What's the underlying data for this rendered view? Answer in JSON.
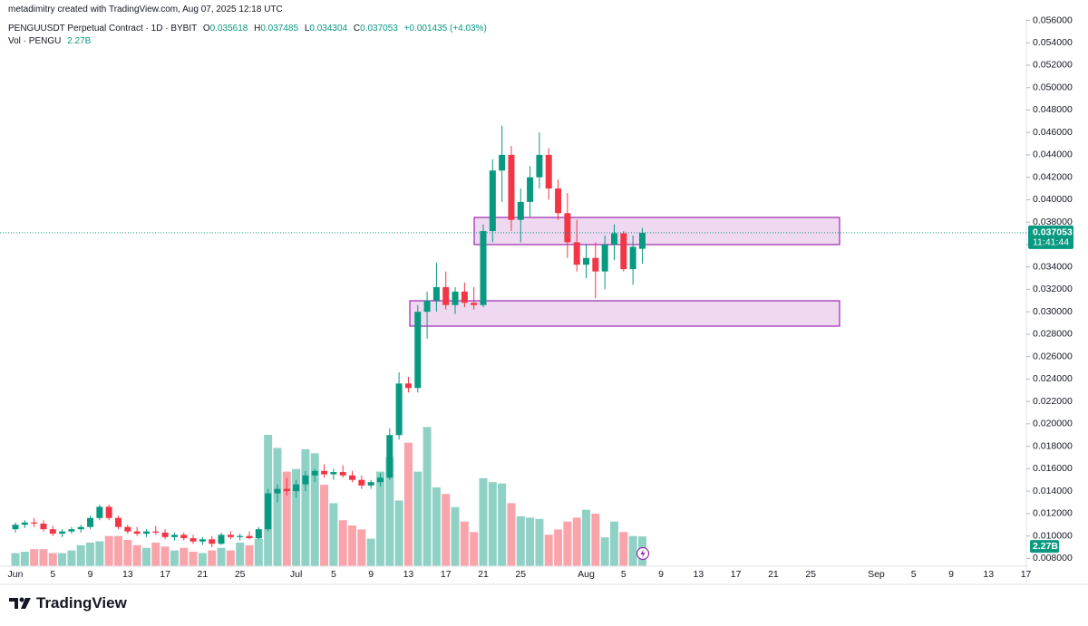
{
  "attribution": "metadimitry created with TradingView.com, Aug 07, 2025 12:18 UTC",
  "logo": "TradingView",
  "chart_data": {
    "type": "candlestick",
    "symbol": "PENGUUSDT Perpetual Contract · 1D · BYBIT",
    "ohlc_labels": [
      "O",
      "H",
      "L",
      "C"
    ],
    "change": "+0.001435",
    "change_pct": "(+4.03%)",
    "countdown": "11:41:44",
    "up_color": "#089981",
    "down_color": "#f23645",
    "x": [
      "06-01",
      "06-02",
      "06-03",
      "06-04",
      "06-05",
      "06-06",
      "06-07",
      "06-08",
      "06-09",
      "06-10",
      "06-11",
      "06-12",
      "06-13",
      "06-14",
      "06-15",
      "06-16",
      "06-17",
      "06-18",
      "06-19",
      "06-20",
      "06-21",
      "06-22",
      "06-23",
      "06-24",
      "06-25",
      "06-26",
      "06-27",
      "06-28",
      "06-29",
      "06-30",
      "07-01",
      "07-02",
      "07-03",
      "07-04",
      "07-05",
      "07-06",
      "07-07",
      "07-08",
      "07-09",
      "07-10",
      "07-11",
      "07-12",
      "07-13",
      "07-14",
      "07-15",
      "07-16",
      "07-17",
      "07-18",
      "07-19",
      "07-20",
      "07-21",
      "07-22",
      "07-23",
      "07-24",
      "07-25",
      "07-26",
      "07-27",
      "07-28",
      "07-29",
      "07-30",
      "07-31",
      "08-01",
      "08-02",
      "08-03",
      "08-04",
      "08-05",
      "08-06",
      "08-07"
    ],
    "open": [
      0.0106,
      0.011,
      0.0112,
      0.0111,
      0.0106,
      0.0102,
      0.0104,
      0.0106,
      0.0108,
      0.0116,
      0.0126,
      0.0116,
      0.0108,
      0.0104,
      0.0102,
      0.0104,
      0.0103,
      0.0099,
      0.0101,
      0.0098,
      0.0095,
      0.0097,
      0.0093,
      0.0101,
      0.0099,
      0.01,
      0.0098,
      0.0106,
      0.0138,
      0.0142,
      0.014,
      0.0146,
      0.0154,
      0.0158,
      0.0155,
      0.0157,
      0.0154,
      0.015,
      0.0145,
      0.0148,
      0.0152,
      0.019,
      0.0236,
      0.0232,
      0.03,
      0.031,
      0.0322,
      0.0306,
      0.0318,
      0.0308,
      0.0306,
      0.0372,
      0.0426,
      0.044,
      0.0382,
      0.0398,
      0.042,
      0.044,
      0.041,
      0.0388,
      0.0362,
      0.0342,
      0.0348,
      0.0336,
      0.036,
      0.037,
      0.0338,
      0.035618
    ],
    "high": [
      0.0112,
      0.0114,
      0.0116,
      0.0114,
      0.0109,
      0.0106,
      0.0108,
      0.011,
      0.0118,
      0.0128,
      0.0128,
      0.0118,
      0.011,
      0.0108,
      0.0106,
      0.0109,
      0.0106,
      0.0103,
      0.0103,
      0.0101,
      0.0099,
      0.01,
      0.0103,
      0.0104,
      0.0102,
      0.0104,
      0.0108,
      0.0142,
      0.0146,
      0.0152,
      0.015,
      0.0158,
      0.016,
      0.0164,
      0.016,
      0.0163,
      0.0158,
      0.0154,
      0.015,
      0.0156,
      0.0196,
      0.0246,
      0.0242,
      0.0306,
      0.0318,
      0.0344,
      0.0336,
      0.0322,
      0.0326,
      0.0322,
      0.0378,
      0.0436,
      0.0466,
      0.0448,
      0.041,
      0.043,
      0.046,
      0.0446,
      0.0418,
      0.0406,
      0.0382,
      0.036,
      0.0362,
      0.0368,
      0.0378,
      0.0372,
      0.0368,
      0.037485
    ],
    "low": [
      0.0103,
      0.0107,
      0.0108,
      0.0104,
      0.01,
      0.0099,
      0.0102,
      0.0103,
      0.0106,
      0.0114,
      0.0114,
      0.0106,
      0.0102,
      0.01,
      0.0099,
      0.0101,
      0.0097,
      0.0096,
      0.0096,
      0.0093,
      0.0092,
      0.009,
      0.0092,
      0.0097,
      0.0096,
      0.0097,
      0.0097,
      0.0104,
      0.013,
      0.0136,
      0.0134,
      0.014,
      0.0148,
      0.0152,
      0.015,
      0.0152,
      0.0148,
      0.0142,
      0.0142,
      0.0144,
      0.015,
      0.0186,
      0.0228,
      0.0228,
      0.0276,
      0.03,
      0.0302,
      0.0298,
      0.0304,
      0.0302,
      0.0304,
      0.0362,
      0.0398,
      0.0372,
      0.0362,
      0.0385,
      0.041,
      0.04,
      0.0382,
      0.0348,
      0.0336,
      0.033,
      0.0312,
      0.032,
      0.0346,
      0.0336,
      0.0324,
      0.034304
    ],
    "close": [
      0.011,
      0.0112,
      0.0111,
      0.0106,
      0.0102,
      0.0104,
      0.0106,
      0.0108,
      0.0116,
      0.0126,
      0.0116,
      0.0108,
      0.0104,
      0.0102,
      0.0104,
      0.0103,
      0.0099,
      0.0101,
      0.0098,
      0.0095,
      0.0097,
      0.0093,
      0.0101,
      0.0099,
      0.01,
      0.0098,
      0.0106,
      0.0138,
      0.0142,
      0.014,
      0.0146,
      0.0154,
      0.0158,
      0.0155,
      0.0157,
      0.0154,
      0.015,
      0.0145,
      0.0148,
      0.0152,
      0.019,
      0.0236,
      0.0232,
      0.03,
      0.031,
      0.0322,
      0.0306,
      0.0318,
      0.0308,
      0.0306,
      0.0372,
      0.0426,
      0.044,
      0.0382,
      0.0398,
      0.042,
      0.044,
      0.041,
      0.0388,
      0.0362,
      0.0342,
      0.0348,
      0.0336,
      0.036,
      0.037,
      0.0338,
      0.0358,
      0.037053
    ],
    "volume": {
      "name": "Vol · PENGU",
      "values": [
        1.0,
        1.1,
        1.3,
        1.3,
        1.0,
        1.0,
        1.2,
        1.6,
        1.8,
        1.9,
        2.3,
        2.3,
        2.0,
        1.6,
        1.4,
        1.8,
        1.5,
        1.2,
        1.4,
        1.1,
        1.0,
        1.2,
        1.4,
        1.2,
        1.8,
        1.6,
        2.1,
        10.0,
        9.0,
        7.2,
        7.4,
        8.9,
        8.6,
        6.2,
        4.8,
        3.5,
        3.1,
        2.8,
        2.1,
        7.2,
        8.3,
        5.0,
        9.4,
        7.2,
        10.6,
        6.0,
        5.5,
        4.5,
        3.4,
        2.6,
        6.7,
        6.4,
        6.3,
        4.8,
        3.8,
        3.7,
        3.6,
        2.4,
        2.8,
        3.4,
        3.7,
        4.3,
        4.0,
        2.2,
        3.4,
        2.6,
        2.3,
        2.27
      ],
      "value_labels": [
        null,
        null,
        null,
        null,
        null,
        null,
        null,
        null,
        null,
        null,
        null,
        null,
        null,
        null,
        null,
        null,
        null,
        null,
        null,
        null,
        null,
        null,
        null,
        null,
        null,
        null,
        null,
        null,
        null,
        null,
        null,
        null,
        null,
        null,
        null,
        null,
        null,
        null,
        null,
        null,
        null,
        null,
        null,
        null,
        null,
        null,
        null,
        null,
        null,
        null,
        null,
        null,
        null,
        null,
        null,
        null,
        null,
        null,
        null,
        null,
        null,
        null,
        null,
        null,
        null,
        null,
        null,
        "2.27B"
      ]
    },
    "ylim": [
      0.0073,
      0.0562
    ],
    "yticks": [
      {
        "value": 0.008,
        "label": "0.008000"
      },
      {
        "value": 0.01,
        "label": "0.010000"
      },
      {
        "value": 0.012,
        "label": "0.012000"
      },
      {
        "value": 0.014,
        "label": "0.014000"
      },
      {
        "value": 0.016,
        "label": "0.016000"
      },
      {
        "value": 0.018,
        "label": "0.018000"
      },
      {
        "value": 0.02,
        "label": "0.020000"
      },
      {
        "value": 0.022,
        "label": "0.022000"
      },
      {
        "value": 0.024,
        "label": "0.024000"
      },
      {
        "value": 0.026,
        "label": "0.026000"
      },
      {
        "value": 0.028,
        "label": "0.028000"
      },
      {
        "value": 0.03,
        "label": "0.030000"
      },
      {
        "value": 0.032,
        "label": "0.032000"
      },
      {
        "value": 0.034,
        "label": "0.034000"
      },
      {
        "value": 0.036,
        "label": "0.036000"
      },
      {
        "value": 0.038,
        "label": "0.038000"
      },
      {
        "value": 0.04,
        "label": "0.040000"
      },
      {
        "value": 0.042,
        "label": "0.042000"
      },
      {
        "value": 0.044,
        "label": "0.044000"
      },
      {
        "value": 0.046,
        "label": "0.046000"
      },
      {
        "value": 0.048,
        "label": "0.048000"
      },
      {
        "value": 0.05,
        "label": "0.050000"
      },
      {
        "value": 0.052,
        "label": "0.052000"
      },
      {
        "value": 0.054,
        "label": "0.054000"
      },
      {
        "value": 0.056,
        "label": "0.056000"
      }
    ],
    "xticks": [
      {
        "value": "06-01",
        "label": "Jun"
      },
      {
        "value": "06-05",
        "label": "5"
      },
      {
        "value": "06-09",
        "label": "9"
      },
      {
        "value": "06-13",
        "label": "13"
      },
      {
        "value": "06-17",
        "label": "17"
      },
      {
        "value": "06-21",
        "label": "21"
      },
      {
        "value": "06-25",
        "label": "25"
      },
      {
        "value": "07-01",
        "label": "Jul"
      },
      {
        "value": "07-05",
        "label": "5"
      },
      {
        "value": "07-09",
        "label": "9"
      },
      {
        "value": "07-13",
        "label": "13"
      },
      {
        "value": "07-17",
        "label": "17"
      },
      {
        "value": "07-21",
        "label": "21"
      },
      {
        "value": "07-25",
        "label": "25"
      },
      {
        "value": "08-01",
        "label": "Aug"
      },
      {
        "value": "08-05",
        "label": "5"
      },
      {
        "value": "08-09",
        "label": "9"
      },
      {
        "value": "08-13",
        "label": "13"
      },
      {
        "value": "08-17",
        "label": "17"
      },
      {
        "value": "08-21",
        "label": "21"
      },
      {
        "value": "08-25",
        "label": "25"
      },
      {
        "value": "09-01",
        "label": "Sep"
      },
      {
        "value": "09-05",
        "label": "5"
      },
      {
        "value": "09-09",
        "label": "9"
      },
      {
        "value": "09-13",
        "label": "13"
      },
      {
        "value": "09-17",
        "label": "17"
      }
    ],
    "grid": false
  }
}
